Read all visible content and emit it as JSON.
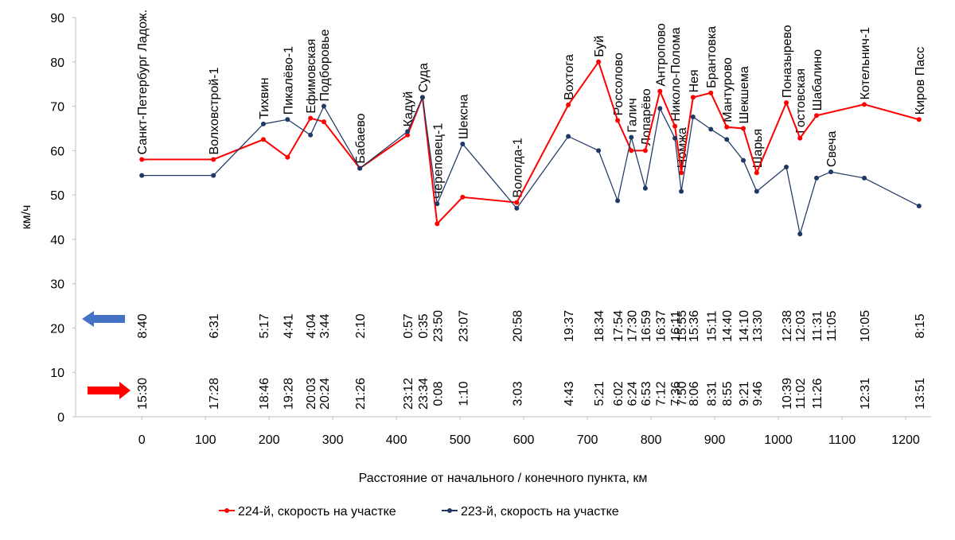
{
  "chart_data": {
    "type": "line",
    "y_label": "км/ч",
    "x_label": "Расстояние от начального / конечного пункта, км",
    "xlim": [
      -104,
      1240
    ],
    "xticks": [
      0,
      100,
      200,
      300,
      400,
      500,
      600,
      700,
      800,
      900,
      1000,
      1100,
      1200
    ],
    "ylim": [
      0,
      90
    ],
    "yticks": [
      0,
      10,
      20,
      30,
      40,
      50,
      60,
      70,
      80,
      90
    ],
    "grid": false,
    "stations": [
      "Санкт-Петербург Ладож.",
      "Волховстрой-1",
      "Тихвин",
      "Пикалёво-1",
      "Ефимовская",
      "Подборовье",
      "Бабаево",
      "Кадуй",
      "Суда",
      "Череповец-1",
      "Шексна",
      "Вологда-1",
      "Вохтога",
      "Буй",
      "Россолово",
      "Галич",
      "Лопарёво",
      "Антропово",
      "Николо-Полома",
      "Номжа",
      "Нея",
      "Брантовка",
      "Мантурово",
      "Шекшема",
      "Шарья",
      "Поназырево",
      "Гостовская",
      "Шабалино",
      "Свеча",
      "Котельнич-1",
      "Киров Пасс"
    ],
    "x": [
      0,
      112.5,
      191,
      229,
      265,
      286,
      342.5,
      417.5,
      441,
      464,
      504,
      589,
      670,
      717.5,
      747.5,
      769,
      791,
      814,
      837.5,
      847.5,
      866,
      894,
      919,
      945,
      966,
      1012.5,
      1034,
      1060,
      1082.5,
      1135,
      1221
    ],
    "series": [
      {
        "name": "224-й, скорость на участке",
        "color": "#ff0000",
        "x": [
          0,
          112.5,
          191,
          229,
          265,
          286,
          342.5,
          417.5,
          441,
          464,
          504,
          589,
          670,
          717.5,
          747.5,
          769,
          791,
          814,
          837.5,
          847.5,
          866,
          894,
          919,
          945,
          966,
          1012.5,
          1034,
          1060,
          1135,
          1221
        ],
        "values": [
          58,
          58,
          62.5,
          58.5,
          67.3,
          66.5,
          56,
          63.5,
          72,
          43.5,
          49.5,
          48.3,
          70.3,
          80,
          66.8,
          60,
          60,
          73.4,
          65.5,
          55,
          72,
          73,
          65.3,
          65,
          55,
          70.8,
          62.8,
          67.9,
          70.4,
          67
        ],
        "times": [
          "15:30",
          "17:28",
          "18:46",
          "19:28",
          "20:03",
          "20:24",
          "21:26",
          "23:12",
          "23:34",
          "0:08",
          "1:10",
          "3:03",
          "4:43",
          "5:21",
          "6:02",
          "6:24",
          "6:53",
          "7:12",
          "7:36",
          "7:50",
          "8:06",
          "8:31",
          "8:55",
          "9:21",
          "9:46",
          "10:39",
          "11:02",
          "11:26",
          "12:31",
          "13:51"
        ]
      },
      {
        "name": "223-й, скорость на участке",
        "color": "#1f3864",
        "x": [
          0,
          112.5,
          191,
          229,
          265,
          286,
          342.5,
          417.5,
          441,
          464,
          504,
          589,
          670,
          717.5,
          747.5,
          769,
          791,
          814,
          837.5,
          847.5,
          866,
          894,
          919,
          945,
          966,
          1012.5,
          1034,
          1060,
          1082.5,
          1135,
          1221
        ],
        "values": [
          54.4,
          54.4,
          66,
          67,
          63.5,
          70,
          56,
          64.3,
          72,
          48,
          61.5,
          47,
          63.2,
          60,
          48.7,
          63,
          51.5,
          69.5,
          62.8,
          50.8,
          67.6,
          64.8,
          62.5,
          57.8,
          50.8,
          56.3,
          41.2,
          53.8,
          55.2,
          53.8,
          47.5
        ],
        "times": [
          "8:40",
          "6:31",
          "5:17",
          "4:41",
          "4:04",
          "3:44",
          "2:10",
          "0:57",
          "0:35",
          "23:50",
          "23:07",
          "20:58",
          "19:37",
          "18:34",
          "17:54",
          "17:30",
          "16:59",
          "16:37",
          "16:11",
          "15:55",
          "15:36",
          "15:11",
          "14:40",
          "14:10",
          "13:30",
          "12:38",
          "12:03",
          "11:31",
          "11:05",
          "10:05",
          "8:15"
        ]
      }
    ]
  }
}
